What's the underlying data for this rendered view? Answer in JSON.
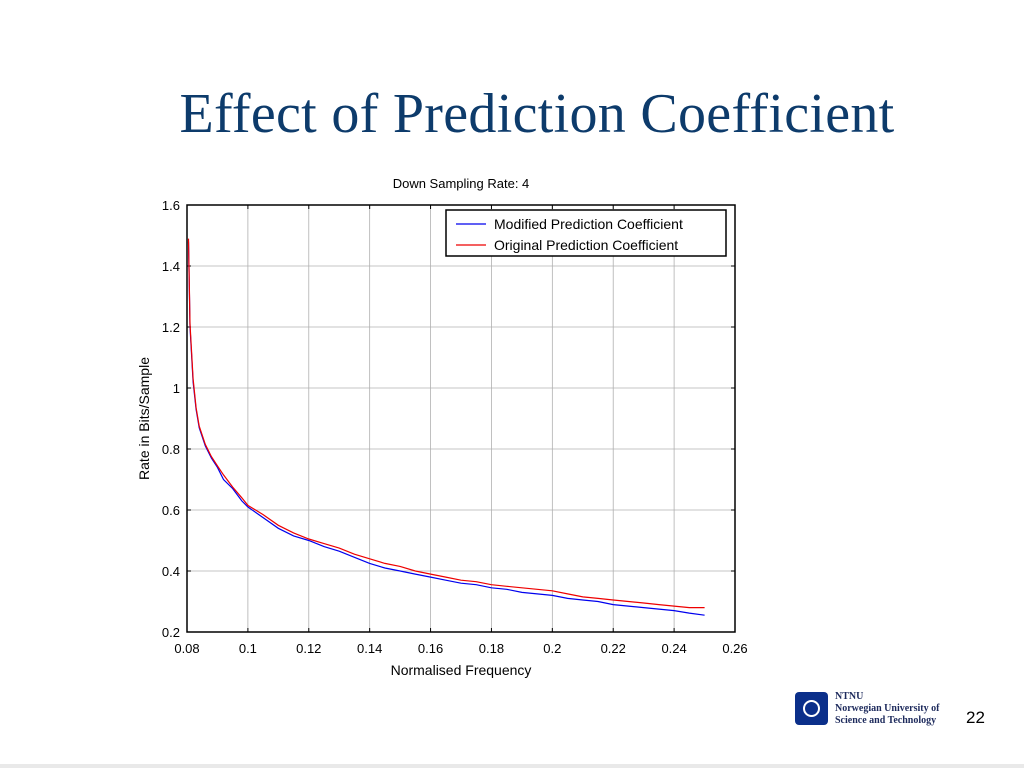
{
  "slide": {
    "title": "Effect of Prediction Coefficient",
    "page_number": "22"
  },
  "institution": {
    "lines": [
      "NTNU",
      "Norwegian University of",
      "Science and Technology"
    ],
    "logo_color": "#0b2f8a"
  },
  "chart_data": {
    "type": "line",
    "title": "Down Sampling Rate: 4",
    "xlabel": "Normalised Frequency",
    "ylabel": "Rate in Bits/Sample",
    "xlim": [
      0.08,
      0.26
    ],
    "ylim": [
      0.2,
      1.6
    ],
    "xticks": [
      "0.08",
      "0.1",
      "0.12",
      "0.14",
      "0.16",
      "0.18",
      "0.2",
      "0.22",
      "0.24",
      "0.26"
    ],
    "yticks": [
      "0.2",
      "0.4",
      "0.6",
      "0.8",
      "1",
      "1.2",
      "1.4",
      "1.6"
    ],
    "grid": true,
    "legend_position": "top-right",
    "series": [
      {
        "name": "Modified Prediction Coefficient",
        "color": "#0000ee",
        "x": [
          0.0805,
          0.081,
          0.082,
          0.083,
          0.084,
          0.086,
          0.088,
          0.09,
          0.092,
          0.095,
          0.098,
          0.1,
          0.105,
          0.11,
          0.115,
          0.12,
          0.125,
          0.13,
          0.135,
          0.14,
          0.145,
          0.15,
          0.155,
          0.16,
          0.165,
          0.17,
          0.175,
          0.18,
          0.185,
          0.19,
          0.195,
          0.2,
          0.205,
          0.21,
          0.215,
          0.22,
          0.225,
          0.23,
          0.235,
          0.24,
          0.245,
          0.25
        ],
        "y": [
          1.48,
          1.2,
          1.02,
          0.93,
          0.87,
          0.81,
          0.77,
          0.74,
          0.7,
          0.67,
          0.63,
          0.61,
          0.575,
          0.54,
          0.515,
          0.5,
          0.48,
          0.465,
          0.445,
          0.425,
          0.41,
          0.4,
          0.39,
          0.38,
          0.37,
          0.36,
          0.355,
          0.345,
          0.34,
          0.33,
          0.325,
          0.32,
          0.31,
          0.305,
          0.3,
          0.29,
          0.285,
          0.28,
          0.275,
          0.27,
          0.262,
          0.255
        ]
      },
      {
        "name": "Original Prediction Coefficient",
        "color": "#ee0000",
        "x": [
          0.0805,
          0.081,
          0.082,
          0.083,
          0.084,
          0.086,
          0.088,
          0.09,
          0.092,
          0.095,
          0.098,
          0.1,
          0.105,
          0.11,
          0.115,
          0.12,
          0.125,
          0.13,
          0.135,
          0.14,
          0.145,
          0.15,
          0.155,
          0.16,
          0.165,
          0.17,
          0.175,
          0.18,
          0.185,
          0.19,
          0.195,
          0.2,
          0.205,
          0.21,
          0.215,
          0.22,
          0.225,
          0.23,
          0.235,
          0.24,
          0.245,
          0.25
        ],
        "y": [
          1.49,
          1.21,
          1.03,
          0.935,
          0.875,
          0.815,
          0.775,
          0.745,
          0.715,
          0.675,
          0.64,
          0.615,
          0.585,
          0.55,
          0.525,
          0.505,
          0.49,
          0.475,
          0.455,
          0.44,
          0.425,
          0.415,
          0.4,
          0.39,
          0.38,
          0.37,
          0.365,
          0.355,
          0.35,
          0.345,
          0.34,
          0.335,
          0.325,
          0.315,
          0.31,
          0.305,
          0.3,
          0.295,
          0.29,
          0.285,
          0.28,
          0.28
        ]
      }
    ]
  }
}
